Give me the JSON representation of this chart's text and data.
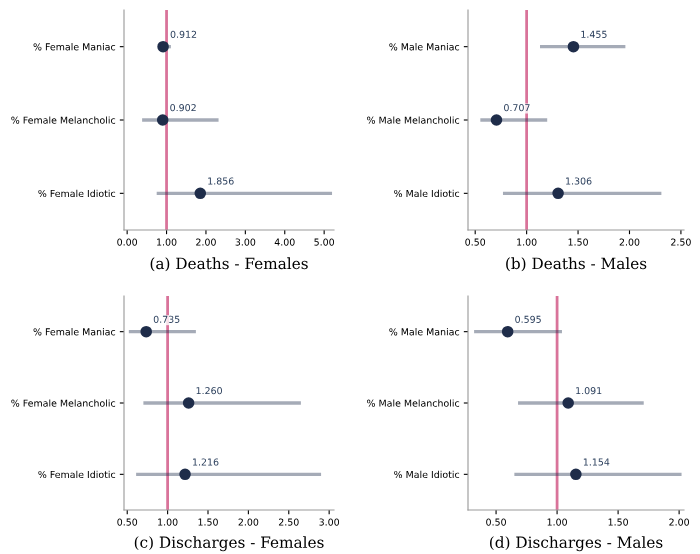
{
  "chart_data": [
    {
      "type": "scatter",
      "orientation": "horizontal",
      "title": "(a) Deaths - Females",
      "categories": [
        "% Female Maniac",
        "% Female Melancholic",
        "% Female Idiotic"
      ],
      "series": [
        {
          "color": "#1f2d4a",
          "values": [
            0.912,
            0.902,
            1.856
          ],
          "errors": [
            [
              0.81,
              1.11
            ],
            [
              0.38,
              2.32
            ],
            [
              0.75,
              5.2
            ]
          ],
          "value_labels": [
            "0.912",
            "0.902",
            "1.856"
          ]
        }
      ],
      "xlim": [
        -0.08,
        5.25
      ],
      "xticks": [
        {
          "value": 0,
          "label": "0.00"
        },
        {
          "value": 1,
          "label": "1.00"
        },
        {
          "value": 2,
          "label": "2.00"
        },
        {
          "value": 3,
          "label": "3.00"
        },
        {
          "value": 4,
          "label": "4.00"
        },
        {
          "value": 5,
          "label": "5.00"
        }
      ],
      "ref_lines": [
        {
          "axis": "x",
          "value": 1,
          "color": "#d9739a"
        }
      ],
      "marker": "circle",
      "grid": false,
      "legend": false
    },
    {
      "type": "scatter",
      "orientation": "horizontal",
      "title": "(b) Deaths - Males",
      "categories": [
        "% Male Maniac",
        "% Male Melancholic",
        "% Male Idiotic"
      ],
      "series": [
        {
          "color": "#1f2d4a",
          "values": [
            1.455,
            0.707,
            1.306
          ],
          "errors": [
            [
              1.13,
              1.96
            ],
            [
              0.55,
              1.2
            ],
            [
              0.77,
              2.31
            ]
          ],
          "value_labels": [
            "1.455",
            "0.707",
            "1.306"
          ]
        }
      ],
      "xlim": [
        0.43,
        2.53
      ],
      "xticks": [
        {
          "value": 0.5,
          "label": "0.50"
        },
        {
          "value": 1,
          "label": "1.00"
        },
        {
          "value": 1.5,
          "label": "1.50"
        },
        {
          "value": 2,
          "label": "2.00"
        },
        {
          "value": 2.5,
          "label": "2.50"
        }
      ],
      "ref_lines": [
        {
          "axis": "x",
          "value": 1,
          "color": "#d9739a"
        }
      ],
      "marker": "circle",
      "grid": false,
      "legend": false
    },
    {
      "type": "scatter",
      "orientation": "horizontal",
      "title": "(c) Discharges - Females",
      "categories": [
        "% Female Maniac",
        "% Female Melancholic",
        "% Female Idiotic"
      ],
      "series": [
        {
          "color": "#1f2d4a",
          "values": [
            0.735,
            1.26,
            1.216
          ],
          "errors": [
            [
              0.52,
              1.35
            ],
            [
              0.7,
              2.65
            ],
            [
              0.61,
              2.9
            ]
          ],
          "value_labels": [
            "0.735",
            "1.260",
            "1.216"
          ]
        }
      ],
      "xlim": [
        0.46,
        3.06
      ],
      "xticks": [
        {
          "value": 0.5,
          "label": "0.50"
        },
        {
          "value": 1,
          "label": "1.00"
        },
        {
          "value": 1.5,
          "label": "1.50"
        },
        {
          "value": 2,
          "label": "2.00"
        },
        {
          "value": 2.5,
          "label": "2.50"
        },
        {
          "value": 3,
          "label": "3.00"
        }
      ],
      "ref_lines": [
        {
          "axis": "x",
          "value": 1,
          "color": "#d9739a"
        }
      ],
      "marker": "circle",
      "grid": false,
      "legend": false
    },
    {
      "type": "scatter",
      "orientation": "horizontal",
      "title": "(d) Discharges - Males",
      "categories": [
        "% Male Maniac",
        "% Male Melancholic",
        "% Male Idiotic"
      ],
      "series": [
        {
          "color": "#1f2d4a",
          "values": [
            0.595,
            1.091,
            1.154
          ],
          "errors": [
            [
              0.32,
              1.04
            ],
            [
              0.68,
              1.71
            ],
            [
              0.65,
              2.02
            ]
          ],
          "value_labels": [
            "0.595",
            "1.091",
            "1.154"
          ]
        }
      ],
      "xlim": [
        0.27,
        2.04
      ],
      "xticks": [
        {
          "value": 0.5,
          "label": "0.50"
        },
        {
          "value": 1,
          "label": "1.00"
        },
        {
          "value": 1.5,
          "label": "1.50"
        },
        {
          "value": 2,
          "label": "2.00"
        }
      ],
      "ref_lines": [
        {
          "axis": "x",
          "value": 1,
          "color": "#d9739a"
        }
      ],
      "marker": "circle",
      "grid": false,
      "legend": false
    }
  ]
}
